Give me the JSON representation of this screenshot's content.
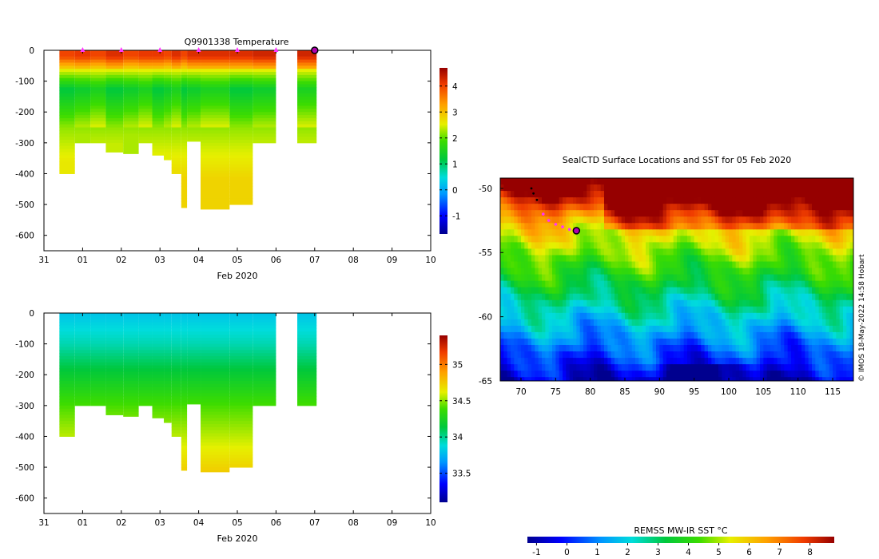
{
  "chart_data": [
    {
      "type": "heatmap",
      "title": "Q9901338  Temperature",
      "xlabel": "Feb 2020",
      "x_tick_labels": [
        "31",
        "01",
        "02",
        "03",
        "04",
        "05",
        "06",
        "07",
        "08",
        "09",
        "10"
      ],
      "xlim": [
        -1,
        9
      ],
      "y_tick_labels": [
        "0",
        "-100",
        "-200",
        "-300",
        "-400",
        "-500",
        "-600"
      ],
      "ylim": [
        -650,
        0
      ],
      "colorbar": {
        "ticks": [
          "-1",
          "0",
          "1",
          "2",
          "3",
          "4"
        ],
        "min": -1.7,
        "max": 4.7
      },
      "dive_markers_days": [
        0.0,
        1.0,
        2.0,
        3.0,
        4.0,
        5.0
      ],
      "current_position_day": 6.0,
      "profiles": [
        {
          "start": -0.6,
          "end": -0.2,
          "depth": 400,
          "surface": 4.0,
          "bottom": 2.6
        },
        {
          "start": -0.2,
          "end": 0.2,
          "depth": 300,
          "surface": 4.1,
          "bottom": 2.3
        },
        {
          "start": 0.2,
          "end": 0.6,
          "depth": 300,
          "surface": 4.0,
          "bottom": 2.6
        },
        {
          "start": 0.6,
          "end": 1.05,
          "depth": 330,
          "surface": 4.2,
          "bottom": 2.4
        },
        {
          "start": 1.05,
          "end": 1.45,
          "depth": 335,
          "surface": 4.0,
          "bottom": 2.3
        },
        {
          "start": 1.45,
          "end": 1.8,
          "depth": 300,
          "surface": 4.1,
          "bottom": 2.6
        },
        {
          "start": 1.8,
          "end": 2.1,
          "depth": 340,
          "surface": 4.1,
          "bottom": 2.6
        },
        {
          "start": 2.1,
          "end": 2.3,
          "depth": 355,
          "surface": 4.0,
          "bottom": 2.5
        },
        {
          "start": 2.3,
          "end": 2.55,
          "depth": 400,
          "surface": 4.2,
          "bottom": 2.7
        },
        {
          "start": 2.55,
          "end": 2.7,
          "depth": 510,
          "surface": 4.0,
          "bottom": 2.8
        },
        {
          "start": 2.7,
          "end": 3.05,
          "depth": 295,
          "surface": 4.2,
          "bottom": 2.8
        },
        {
          "start": 3.05,
          "end": 3.8,
          "depth": 515,
          "surface": 4.2,
          "bottom": 2.8
        },
        {
          "start": 3.8,
          "end": 4.4,
          "depth": 500,
          "surface": 4.2,
          "bottom": 2.8
        },
        {
          "start": 4.4,
          "end": 5.0,
          "depth": 300,
          "surface": 4.3,
          "bottom": 2.4
        },
        {
          "start": 5.55,
          "end": 6.05,
          "depth": 300,
          "surface": 4.3,
          "bottom": 2.4
        }
      ]
    },
    {
      "type": "heatmap",
      "xlabel": "Feb 2020",
      "x_tick_labels": [
        "31",
        "01",
        "02",
        "03",
        "04",
        "05",
        "06",
        "07",
        "08",
        "09",
        "10"
      ],
      "xlim": [
        -1,
        9
      ],
      "y_tick_labels": [
        "0",
        "-100",
        "-200",
        "-300",
        "-400",
        "-500",
        "-600"
      ],
      "ylim": [
        -650,
        0
      ],
      "colorbar": {
        "ticks": [
          "33.5",
          "34",
          "34.5",
          "35"
        ],
        "min": 33.1,
        "max": 35.4
      },
      "profiles_same_as_temperature": true,
      "surface_salinity": 33.8,
      "mid_salinity": 34.3,
      "deep_salinity": 34.6
    },
    {
      "type": "heatmap",
      "title": "SealCTD Surface Locations and SST for 05 Feb 2020",
      "x_tick_labels": [
        "70",
        "75",
        "80",
        "85",
        "90",
        "95",
        "100",
        "105",
        "110",
        "115"
      ],
      "xlim": [
        67,
        118
      ],
      "y_tick_labels": [
        "-50",
        "-55",
        "-60",
        "-65"
      ],
      "ylim": [
        -65,
        -49.2
      ],
      "colorbar_label": "REMSS MW-IR SST °C",
      "colorbar": {
        "ticks": [
          "-1",
          "0",
          "1",
          "2",
          "3",
          "4",
          "5",
          "6",
          "7",
          "8"
        ],
        "min": -1.3,
        "max": 8.8
      },
      "track": [
        [
          71.5,
          -50.0
        ],
        [
          71.8,
          -50.4
        ],
        [
          72.3,
          -50.9
        ],
        [
          73.2,
          -52.0
        ],
        [
          74.0,
          -52.5
        ],
        [
          75.0,
          -52.8
        ],
        [
          76.0,
          -53.0
        ],
        [
          77.0,
          -53.2
        ],
        [
          78.0,
          -53.3
        ]
      ],
      "current_position": [
        78.0,
        -53.3
      ],
      "watermark": "© IMOS 18-May-2022 14:58 Hobart"
    }
  ],
  "colors": {
    "marker_magenta": "#ff33ff",
    "current_fill": "#b000b0",
    "axis": "#000000"
  }
}
